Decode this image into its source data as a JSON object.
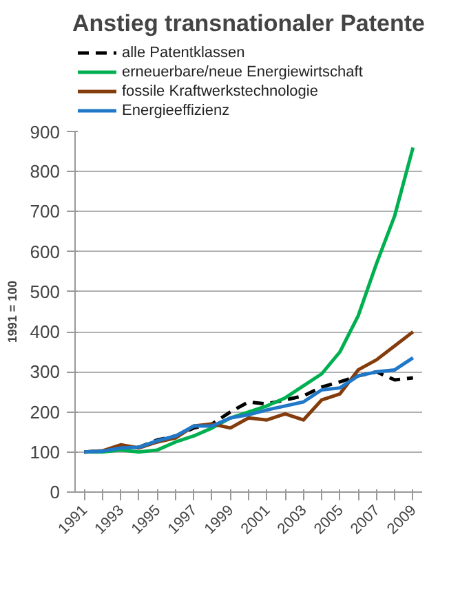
{
  "chart_data": {
    "type": "line",
    "title": "Anstieg transnationaler Patente",
    "ylabel": "1991 = 100",
    "categories": [
      "1991",
      null,
      "1993",
      null,
      "1995",
      null,
      "1997",
      null,
      "1999",
      null,
      "2001",
      null,
      "2003",
      null,
      "2005",
      null,
      "2007",
      null,
      "2009"
    ],
    "series": [
      {
        "name": "alle Patentklassen",
        "color": "#000000",
        "line_style": "dashed",
        "values": [
          100,
          102,
          112,
          112,
          130,
          140,
          160,
          170,
          200,
          225,
          220,
          230,
          240,
          262,
          275,
          290,
          300,
          280,
          285
        ]
      },
      {
        "name": "erneuerbare/neue Energiewirtschaft",
        "color": "#00b050",
        "values": [
          100,
          100,
          105,
          100,
          105,
          125,
          140,
          160,
          185,
          200,
          215,
          235,
          265,
          295,
          350,
          440,
          570,
          690,
          860
        ]
      },
      {
        "name": "fossile  Kraftwerkstechnologie",
        "color": "#843c0c",
        "values": [
          100,
          103,
          118,
          110,
          125,
          135,
          165,
          170,
          160,
          185,
          180,
          195,
          180,
          230,
          245,
          305,
          330,
          365,
          400
        ]
      },
      {
        "name": "Energieeffizienz",
        "color": "#1f78c8",
        "values": [
          100,
          102,
          110,
          112,
          128,
          140,
          165,
          165,
          185,
          193,
          205,
          215,
          225,
          255,
          260,
          290,
          300,
          305,
          335
        ]
      }
    ],
    "ylim": [
      0,
      900
    ],
    "yticks": [
      0,
      100,
      200,
      300,
      400,
      500,
      600,
      700,
      800,
      900
    ],
    "grid": "y",
    "legend": "top",
    "line_style": "solid",
    "marker": "none"
  }
}
